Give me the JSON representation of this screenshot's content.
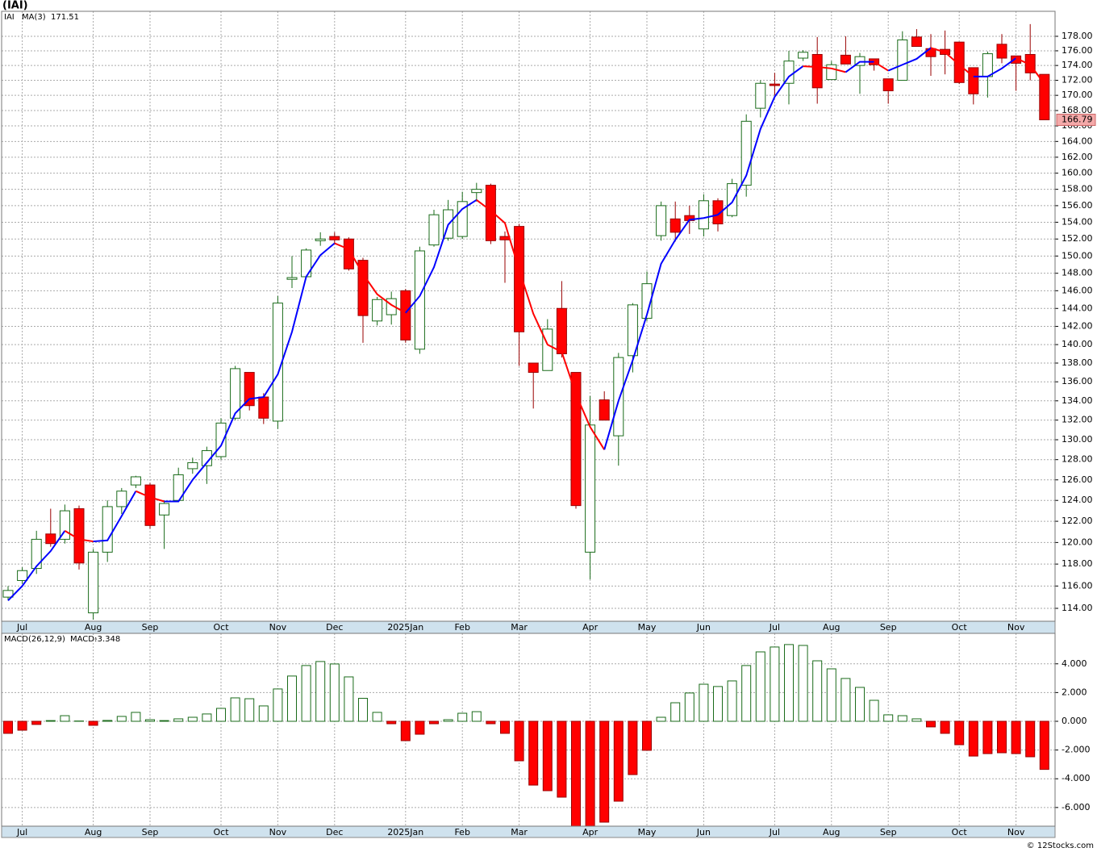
{
  "chart_data": [
    {
      "type": "candlestick",
      "title": "(IAI)",
      "categories": [
        null,
        "Jul",
        null,
        null,
        null,
        null,
        "Aug",
        null,
        null,
        null,
        "Sep",
        null,
        null,
        null,
        null,
        "Oct",
        null,
        null,
        null,
        "Nov",
        null,
        null,
        null,
        "Dec",
        null,
        null,
        null,
        null,
        "2025Jan",
        null,
        null,
        null,
        "Feb",
        null,
        null,
        null,
        "Mar",
        null,
        null,
        null,
        null,
        "Apr",
        null,
        null,
        null,
        "May",
        null,
        null,
        null,
        "Jun",
        null,
        null,
        null,
        null,
        "Jul",
        null,
        null,
        null,
        "Aug",
        null,
        null,
        null,
        "Sep",
        null,
        null,
        null,
        null,
        "Oct",
        null,
        null,
        null,
        "Nov",
        null,
        null
      ],
      "series": [
        {
          "name": "IAI",
          "up_color": "#ffffff",
          "down_color": "#ff0000",
          "up_edge_color": "#1a6b1a",
          "down_edge_color": "#990000",
          "open": [
            115.0,
            116.5,
            117.6,
            120.8,
            120.3,
            123.2,
            113.6,
            119.1,
            123.4,
            125.5,
            125.5,
            122.6,
            124.0,
            127.1,
            127.4,
            128.3,
            132.2,
            137.0,
            134.4,
            131.9,
            147.3,
            147.6,
            151.8,
            152.3,
            152.0,
            149.5,
            142.6,
            143.3,
            146.0,
            139.5,
            151.3,
            152.1,
            152.3,
            157.6,
            158.5,
            152.3,
            153.5,
            138.0,
            137.2,
            144.0,
            137.0,
            119.1,
            134.1,
            130.4,
            138.8,
            142.9,
            152.4,
            154.4,
            154.8,
            153.2,
            156.6,
            154.8,
            158.5,
            168.3,
            171.5,
            171.6,
            175.0,
            175.5,
            172.1,
            175.4,
            174.0,
            174.9,
            172.2,
            172.0,
            177.9,
            176.3,
            176.2,
            177.2,
            173.7,
            172.5,
            176.9,
            175.3,
            175.5,
            172.8
          ],
          "high": [
            116.0,
            117.7,
            121.1,
            123.2,
            123.6,
            123.5,
            119.4,
            124.0,
            125.2,
            126.4,
            125.7,
            124.0,
            127.2,
            128.2,
            129.3,
            132.2,
            137.7,
            137.0,
            134.8,
            145.4,
            150.0,
            150.9,
            152.8,
            152.8,
            152.2,
            149.8,
            145.3,
            145.9,
            146.2,
            151.1,
            155.5,
            156.7,
            157.7,
            158.8,
            158.7,
            152.9,
            153.8,
            138.0,
            142.8,
            147.1,
            137.0,
            134.5,
            135.0,
            139.1,
            144.6,
            148.2,
            156.5,
            156.5,
            156.0,
            157.4,
            156.9,
            159.3,
            167.5,
            172.0,
            173.0,
            176.0,
            176.1,
            177.9,
            174.6,
            178.0,
            175.7,
            174.9,
            172.2,
            178.7,
            179.0,
            178.3,
            178.8,
            177.2,
            173.7,
            175.9,
            178.3,
            175.3,
            179.7,
            172.8
          ],
          "low": [
            114.7,
            116.2,
            117.1,
            119.6,
            119.9,
            117.5,
            113.0,
            118.2,
            122.7,
            125.2,
            121.3,
            119.4,
            124.0,
            126.6,
            125.6,
            128.0,
            132.0,
            133.0,
            131.6,
            131.1,
            146.3,
            147.5,
            151.2,
            151.4,
            148.3,
            140.2,
            142.1,
            142.2,
            140.2,
            139.0,
            151.1,
            151.8,
            152.0,
            156.5,
            151.4,
            146.9,
            137.7,
            133.2,
            137.2,
            138.6,
            123.2,
            116.6,
            132.0,
            127.4,
            137.0,
            142.6,
            151.8,
            151.7,
            152.6,
            152.3,
            152.9,
            154.6,
            157.1,
            167.1,
            170.0,
            168.8,
            174.6,
            168.9,
            172.1,
            174.2,
            170.2,
            173.3,
            168.9,
            172.0,
            176.6,
            172.6,
            172.8,
            171.5,
            168.8,
            169.7,
            174.3,
            170.6,
            172.0,
            166.79
          ],
          "close": [
            115.6,
            117.4,
            120.3,
            119.9,
            123.0,
            118.1,
            119.1,
            123.4,
            124.9,
            126.3,
            121.6,
            123.7,
            126.5,
            127.7,
            128.9,
            131.7,
            137.4,
            133.5,
            132.2,
            144.6,
            147.5,
            150.7,
            152.0,
            151.9,
            148.5,
            143.2,
            145.0,
            145.1,
            140.5,
            150.6,
            154.9,
            155.5,
            156.5,
            158.0,
            151.8,
            151.9,
            141.4,
            137.0,
            141.7,
            139.0,
            123.5,
            131.5,
            132.0,
            138.6,
            144.4,
            146.8,
            156.0,
            152.8,
            154.2,
            156.6,
            153.8,
            158.7,
            166.6,
            171.6,
            171.3,
            174.6,
            175.8,
            171.0,
            174.1,
            174.2,
            175.2,
            174.1,
            170.6,
            177.5,
            176.6,
            175.2,
            175.5,
            171.7,
            170.2,
            175.6,
            175.0,
            174.3,
            173.0,
            166.79
          ],
          "last_tag_color": "#f4a9a9"
        },
        {
          "name": "MA(3)",
          "type": "line",
          "up_color": "#0000ff",
          "down_color": "#ff0000",
          "values": [
            114.7,
            116.0,
            117.8,
            119.2,
            121.1,
            120.3,
            120.1,
            120.2,
            122.5,
            124.9,
            124.3,
            123.9,
            123.9,
            126.0,
            127.7,
            129.4,
            132.7,
            134.2,
            134.4,
            136.8,
            141.4,
            147.6,
            150.1,
            151.5,
            150.8,
            147.9,
            145.6,
            144.4,
            143.5,
            145.4,
            148.7,
            153.7,
            155.6,
            156.7,
            155.4,
            153.9,
            148.4,
            143.4,
            140.0,
            139.2,
            134.7,
            131.3,
            129.0,
            134.0,
            138.3,
            143.3,
            149.1,
            151.9,
            154.3,
            154.5,
            154.9,
            156.4,
            159.7,
            165.6,
            169.8,
            172.5,
            173.9,
            173.8,
            173.6,
            173.1,
            174.5,
            174.5,
            173.3,
            174.1,
            174.9,
            176.4,
            175.8,
            174.1,
            172.5,
            172.5,
            173.6,
            175.0,
            174.1,
            171.51
          ]
        }
      ],
      "ylim": [
        112.86,
        181.5
      ],
      "log_scale": true,
      "grid": true,
      "yticks": [
        {
          "value": 114,
          "label": "114.00"
        },
        {
          "value": 116,
          "label": "116.00"
        },
        {
          "value": 118,
          "label": "118.00"
        },
        {
          "value": 120,
          "label": "120.00"
        },
        {
          "value": 122,
          "label": "122.00"
        },
        {
          "value": 124,
          "label": "124.00"
        },
        {
          "value": 126,
          "label": "126.00"
        },
        {
          "value": 128,
          "label": "128.00"
        },
        {
          "value": 130,
          "label": "130.00"
        },
        {
          "value": 132,
          "label": "132.00"
        },
        {
          "value": 134,
          "label": "134.00"
        },
        {
          "value": 136,
          "label": "136.00"
        },
        {
          "value": 138,
          "label": "138.00"
        },
        {
          "value": 140,
          "label": "140.00"
        },
        {
          "value": 142,
          "label": "142.00"
        },
        {
          "value": 144,
          "label": "144.00"
        },
        {
          "value": 146,
          "label": "146.00"
        },
        {
          "value": 148,
          "label": "148.00"
        },
        {
          "value": 150,
          "label": "150.00"
        },
        {
          "value": 152,
          "label": "152.00"
        },
        {
          "value": 154,
          "label": "154.00"
        },
        {
          "value": 156,
          "label": "156.00"
        },
        {
          "value": 158,
          "label": "158.00"
        },
        {
          "value": 160,
          "label": "160.00"
        },
        {
          "value": 162,
          "label": "162.00"
        },
        {
          "value": 164,
          "label": "164.00"
        },
        {
          "value": 166,
          "label": "166.00"
        },
        {
          "value": 168,
          "label": "168.00"
        },
        {
          "value": 170,
          "label": "170.00"
        },
        {
          "value": 172,
          "label": "172.00"
        },
        {
          "value": 174,
          "label": "174.00"
        },
        {
          "value": 176,
          "label": "176.00"
        },
        {
          "value": 178,
          "label": "178.00"
        }
      ]
    },
    {
      "type": "bar",
      "title": "MACD(26,12,9)",
      "categories": [
        null,
        "Jul",
        null,
        null,
        null,
        null,
        "Aug",
        null,
        null,
        null,
        "Sep",
        null,
        null,
        null,
        null,
        "Oct",
        null,
        null,
        null,
        "Nov",
        null,
        null,
        null,
        "Dec",
        null,
        null,
        null,
        null,
        "2025Jan",
        null,
        null,
        null,
        "Feb",
        null,
        null,
        null,
        "Mar",
        null,
        null,
        null,
        null,
        "Apr",
        null,
        null,
        null,
        "May",
        null,
        null,
        null,
        "Jun",
        null,
        null,
        null,
        null,
        "Jul",
        null,
        null,
        null,
        "Aug",
        null,
        null,
        null,
        "Sep",
        null,
        null,
        null,
        null,
        "Oct",
        null,
        null,
        null,
        "Nov",
        null,
        null
      ],
      "series": [
        {
          "name": "MACD:",
          "legend_color": "#0000cc",
          "up_color": "#ffffff",
          "down_color": "#ff0000",
          "up_edge_color": "#1a6b1a",
          "down_edge_color": "#990000",
          "values": [
            -0.84,
            -0.62,
            -0.22,
            0.05,
            0.39,
            0.02,
            -0.28,
            0.06,
            0.34,
            0.62,
            0.11,
            0.05,
            0.17,
            0.28,
            0.51,
            0.9,
            1.63,
            1.57,
            1.07,
            2.25,
            3.15,
            3.88,
            4.16,
            3.99,
            3.09,
            1.6,
            0.62,
            -0.17,
            -1.35,
            -0.9,
            -0.17,
            0.11,
            0.56,
            0.67,
            -0.17,
            -0.84,
            -2.75,
            -4.44,
            -4.83,
            -5.28,
            -7.3,
            -7.3,
            -7.02,
            -5.56,
            -3.71,
            -2.02,
            0.28,
            1.29,
            1.97,
            2.58,
            2.42,
            2.81,
            3.88,
            4.83,
            5.17,
            5.34,
            5.28,
            4.21,
            3.65,
            2.98,
            2.36,
            1.46,
            0.45,
            0.39,
            0.17,
            -0.39,
            -0.84,
            -1.63,
            -2.42,
            -2.25,
            -2.19,
            -2.25,
            -2.47,
            -3.348
          ]
        }
      ],
      "ylim": [
        -7.3,
        6.12
      ],
      "grid": true,
      "yticks": [
        {
          "value": -6,
          "label": "-6.000"
        },
        {
          "value": -4,
          "label": "-4.000"
        },
        {
          "value": -2,
          "label": "-2.000"
        },
        {
          "value": 0,
          "label": "0.000"
        },
        {
          "value": 2,
          "label": "2.000"
        },
        {
          "value": 4,
          "label": "4.000"
        }
      ]
    }
  ],
  "credit": "© 12Stocks.com"
}
